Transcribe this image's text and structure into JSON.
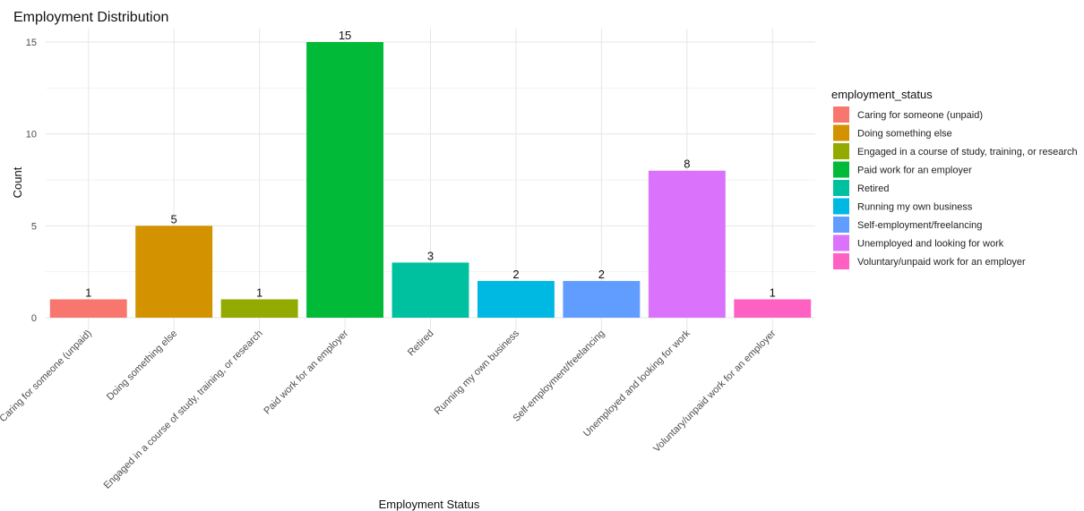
{
  "chart_data": {
    "type": "bar",
    "title": "Employment Distribution",
    "xlabel": "Employment Status",
    "ylabel": "Count",
    "ylim": [
      0,
      15.75
    ],
    "yticks": [
      0,
      5,
      10,
      15
    ],
    "grid": true,
    "legend_title": "employment_status",
    "legend_position": "right",
    "categories": [
      "Caring for someone (unpaid)",
      "Doing something else",
      "Engaged in a course of study, training, or research",
      "Paid work for an employer",
      "Retired",
      "Running my own business",
      "Self-employment/freelancing",
      "Unemployed and looking for work",
      "Voluntary/unpaid work for an employer"
    ],
    "values": [
      1,
      5,
      1,
      15,
      3,
      2,
      2,
      8,
      1
    ],
    "colors": [
      "#F8766D",
      "#D39200",
      "#93AA00",
      "#00BA38",
      "#00C19F",
      "#00B9E3",
      "#619CFF",
      "#DB72FB",
      "#FF61C3"
    ]
  }
}
